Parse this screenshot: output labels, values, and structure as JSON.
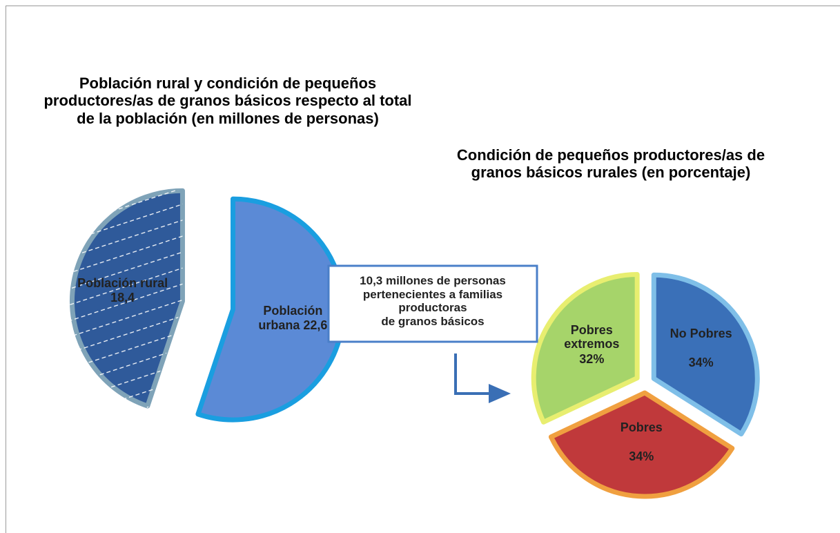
{
  "chart_data": [
    {
      "type": "pie",
      "title": "Población rural y condición de pequeños productores/as de granos básicos respecto al total de la población (en millones de personas)",
      "values": [
        22.6,
        18.4
      ],
      "value_labels": [
        "Población urbana 22,6",
        "Población rural 18,4"
      ],
      "colors": [
        "#5b8ad6",
        "#2f5a9a"
      ],
      "annotation": "10,3 millones de personas\npertenecientes a familias\nproductoras\nde granos básicos"
    },
    {
      "type": "pie",
      "title": "Condición de pequeños productores/as de granos básicos rurales (en porcentaje)",
      "categories": [
        "No Pobres",
        "Pobres",
        "Pobres extremos"
      ],
      "values": [
        34,
        34,
        32
      ],
      "value_labels": [
        "34%",
        "34%",
        "32%"
      ],
      "colors": [
        "#3a70b8",
        "#c0393b",
        "#a6d46a"
      ]
    }
  ]
}
